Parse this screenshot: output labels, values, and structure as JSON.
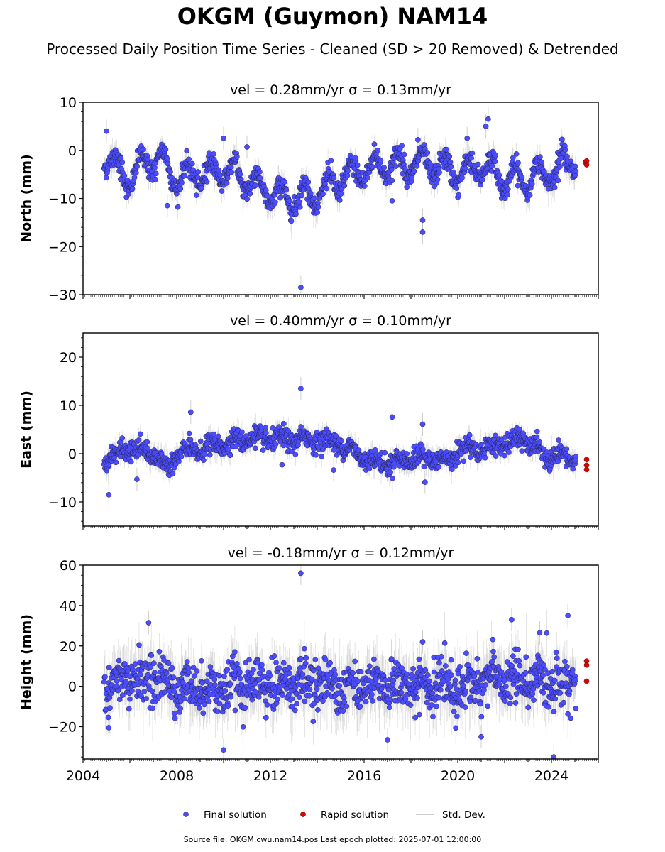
{
  "title": "OKGM (Guymon) NAM14",
  "subtitle": "Processed Daily Position Time Series - Cleaned (SD > 20 Removed) & Detrended",
  "footer": "Source file: OKGM.cwu.nam14.pos  Last epoch plotted: 2025-07-01 12:00:00",
  "colors": {
    "final": "#4b4bff",
    "rapid": "#e00000",
    "stddev": "#bbbbbb"
  },
  "legend": {
    "placement": "bottom-center",
    "items": [
      {
        "label": "Final solution",
        "type": "final"
      },
      {
        "label": "Rapid solution",
        "type": "rapid"
      },
      {
        "label": "Std. Dev.",
        "type": "stddev"
      }
    ]
  },
  "chart_data": [
    {
      "type": "scatter",
      "title": "vel = 0.28mm/yr   σ = 0.13mm/yr",
      "ylabel": "North (mm)",
      "xlim": [
        2004.0,
        2026.0
      ],
      "ylim": [
        -30,
        10
      ],
      "yticks": [
        10,
        0,
        -10,
        -20,
        -30
      ],
      "yticklabels": [
        "10",
        "0",
        "−10",
        "−20",
        "−30"
      ],
      "grid": false,
      "trend": [
        [
          2005.0,
          -1
        ],
        [
          2005.5,
          -4
        ],
        [
          2006.0,
          -6
        ],
        [
          2006.7,
          -2
        ],
        [
          2007.3,
          -2
        ],
        [
          2008.0,
          -6
        ],
        [
          2009.0,
          -5
        ],
        [
          2010.0,
          -4
        ],
        [
          2011.0,
          -6
        ],
        [
          2012.0,
          -9
        ],
        [
          2013.0,
          -10
        ],
        [
          2014.0,
          -9
        ],
        [
          2015.0,
          -6
        ],
        [
          2016.0,
          -4
        ],
        [
          2017.0,
          -3
        ],
        [
          2018.0,
          -3
        ],
        [
          2019.0,
          -3
        ],
        [
          2020.0,
          -5
        ],
        [
          2021.0,
          -3
        ],
        [
          2022.0,
          -6
        ],
        [
          2023.0,
          -6
        ],
        [
          2024.0,
          -4
        ],
        [
          2025.0,
          -2
        ]
      ],
      "seasonal_amp": 2.5,
      "noise": 1.1,
      "outliers": [
        [
          2005.0,
          4
        ],
        [
          2005.6,
          -6
        ],
        [
          2007.6,
          -11.5
        ],
        [
          2010.0,
          2.5
        ],
        [
          2011.0,
          0.7
        ],
        [
          2013.3,
          -28.5
        ],
        [
          2017.2,
          -10.5
        ],
        [
          2018.3,
          2.2
        ],
        [
          2018.5,
          -14.5
        ],
        [
          2018.5,
          -17
        ],
        [
          2019.0,
          -7.5
        ],
        [
          2021.3,
          6.5
        ],
        [
          2021.2,
          5
        ],
        [
          2020.4,
          2.5
        ]
      ],
      "rapid": [
        [
          2025.45,
          -2.5
        ],
        [
          2025.5,
          -2.2
        ],
        [
          2025.5,
          -3.0
        ]
      ]
    },
    {
      "type": "scatter",
      "title": "vel = 0.40mm/yr   σ = 0.10mm/yr",
      "ylabel": "East (mm)",
      "xlim": [
        2004.0,
        2026.0
      ],
      "ylim": [
        -15,
        25
      ],
      "yticks": [
        20,
        10,
        0,
        -10
      ],
      "yticklabels": [
        "20",
        "10",
        "0",
        "−10"
      ],
      "grid": false,
      "trend": [
        [
          2005.0,
          -1
        ],
        [
          2006.0,
          1
        ],
        [
          2007.0,
          0
        ],
        [
          2007.5,
          -3
        ],
        [
          2008.0,
          0
        ],
        [
          2009.0,
          1
        ],
        [
          2010.0,
          2
        ],
        [
          2011.0,
          3
        ],
        [
          2012.0,
          3
        ],
        [
          2013.0,
          3
        ],
        [
          2014.0,
          3
        ],
        [
          2015.0,
          2
        ],
        [
          2016.0,
          -1
        ],
        [
          2017.0,
          -2
        ],
        [
          2018.0,
          -1
        ],
        [
          2019.0,
          -1
        ],
        [
          2019.7,
          -2
        ],
        [
          2020.0,
          1
        ],
        [
          2021.0,
          1
        ],
        [
          2022.0,
          2
        ],
        [
          2023.0,
          3
        ],
        [
          2023.8,
          -1
        ],
        [
          2025.0,
          -1
        ]
      ],
      "seasonal_amp": 0.8,
      "noise": 1.0,
      "outliers": [
        [
          2005.1,
          -8.5
        ],
        [
          2008.6,
          8.6
        ],
        [
          2013.3,
          13.5
        ],
        [
          2017.2,
          7.6
        ],
        [
          2018.5,
          6.1
        ],
        [
          2006.3,
          -5.3
        ],
        [
          2012.5,
          -2.3
        ],
        [
          2018.6,
          -5.9
        ],
        [
          2014.7,
          -3.4
        ]
      ],
      "rapid": [
        [
          2025.5,
          -1.2
        ],
        [
          2025.5,
          -2.4
        ],
        [
          2025.5,
          -3.3
        ]
      ]
    },
    {
      "type": "scatter",
      "title": "vel = -0.18mm/yr   σ = 0.12mm/yr",
      "ylabel": "Height (mm)",
      "xlim": [
        2004.0,
        2026.0
      ],
      "ylim": [
        -36,
        60
      ],
      "yticks": [
        60,
        40,
        20,
        0,
        -20
      ],
      "yticklabels": [
        "60",
        "40",
        "20",
        "0",
        "−20"
      ],
      "xticks": [
        2004,
        2008,
        2012,
        2016,
        2020,
        2024
      ],
      "xticklabels": [
        "2004",
        "2008",
        "2012",
        "2016",
        "2020",
        "2024"
      ],
      "grid": false,
      "trend": [
        [
          2005.0,
          0
        ],
        [
          2006.0,
          3
        ],
        [
          2007.0,
          4
        ],
        [
          2008.0,
          0
        ],
        [
          2010.0,
          -1
        ],
        [
          2012.0,
          1
        ],
        [
          2014.0,
          2
        ],
        [
          2016.0,
          1
        ],
        [
          2018.0,
          0
        ],
        [
          2020.0,
          -1
        ],
        [
          2021.5,
          4
        ],
        [
          2023.0,
          2
        ],
        [
          2025.0,
          3
        ]
      ],
      "seasonal_amp": 3.0,
      "noise": 6.0,
      "outliers": [
        [
          2006.8,
          31.5
        ],
        [
          2010.0,
          -31.5
        ],
        [
          2013.3,
          56
        ],
        [
          2017.0,
          -26.5
        ],
        [
          2021.0,
          -25
        ],
        [
          2022.3,
          33
        ],
        [
          2023.5,
          26.5
        ],
        [
          2024.1,
          -35
        ],
        [
          2024.7,
          35
        ],
        [
          2005.1,
          -20.5
        ],
        [
          2018.5,
          22
        ]
      ],
      "rapid": [
        [
          2025.5,
          12.5
        ],
        [
          2025.5,
          10.5
        ],
        [
          2025.5,
          2.5
        ]
      ]
    }
  ]
}
